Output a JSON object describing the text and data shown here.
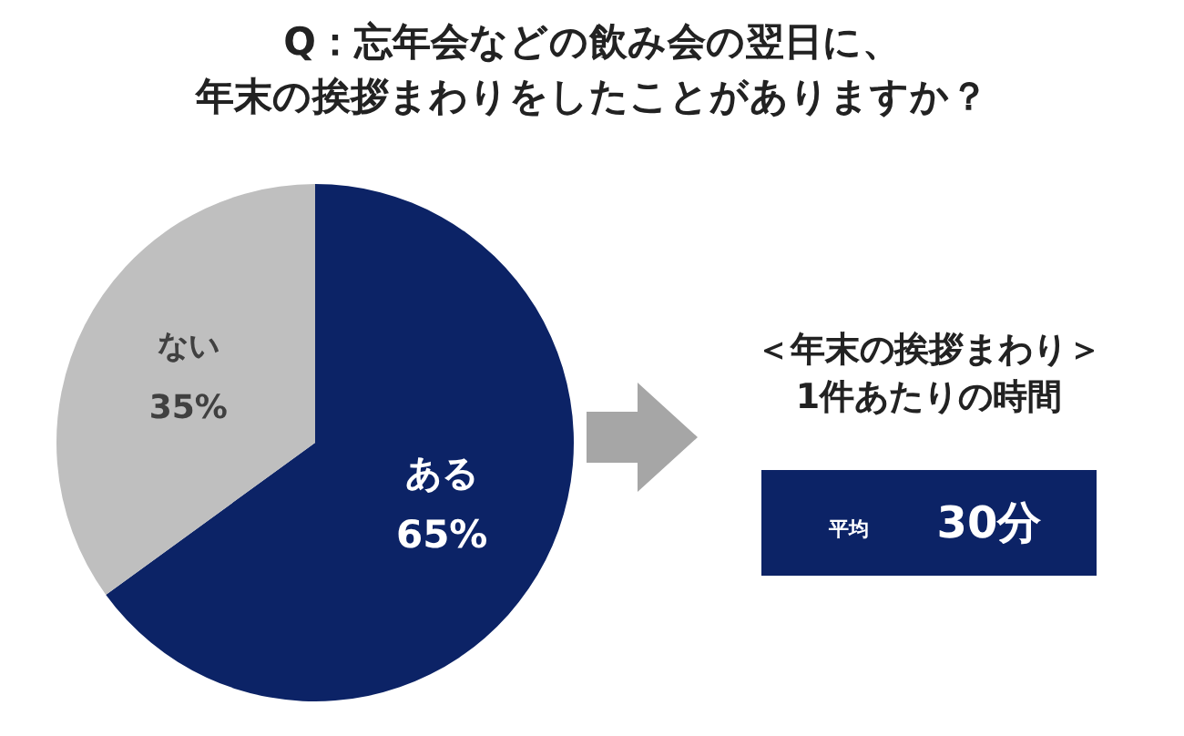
{
  "chart_data": [
    {
      "type": "pie",
      "title": "Q：忘年会などの飲み会の翌日に、",
      "subtitle": "年末の挨拶まわりをしたことがありますか？",
      "categories": [
        "ある",
        "ない"
      ],
      "values": [
        65,
        35
      ],
      "colors": [
        "#0c2366",
        "#bfbfbf"
      ],
      "value_labels": [
        "65%",
        "35%"
      ]
    },
    {
      "type": "other",
      "title": "＜年末の挨拶まわり＞",
      "subtitle": "1件あたりの時間",
      "annotations": [
        "平均",
        "30分"
      ],
      "color": "#0c2366"
    }
  ]
}
